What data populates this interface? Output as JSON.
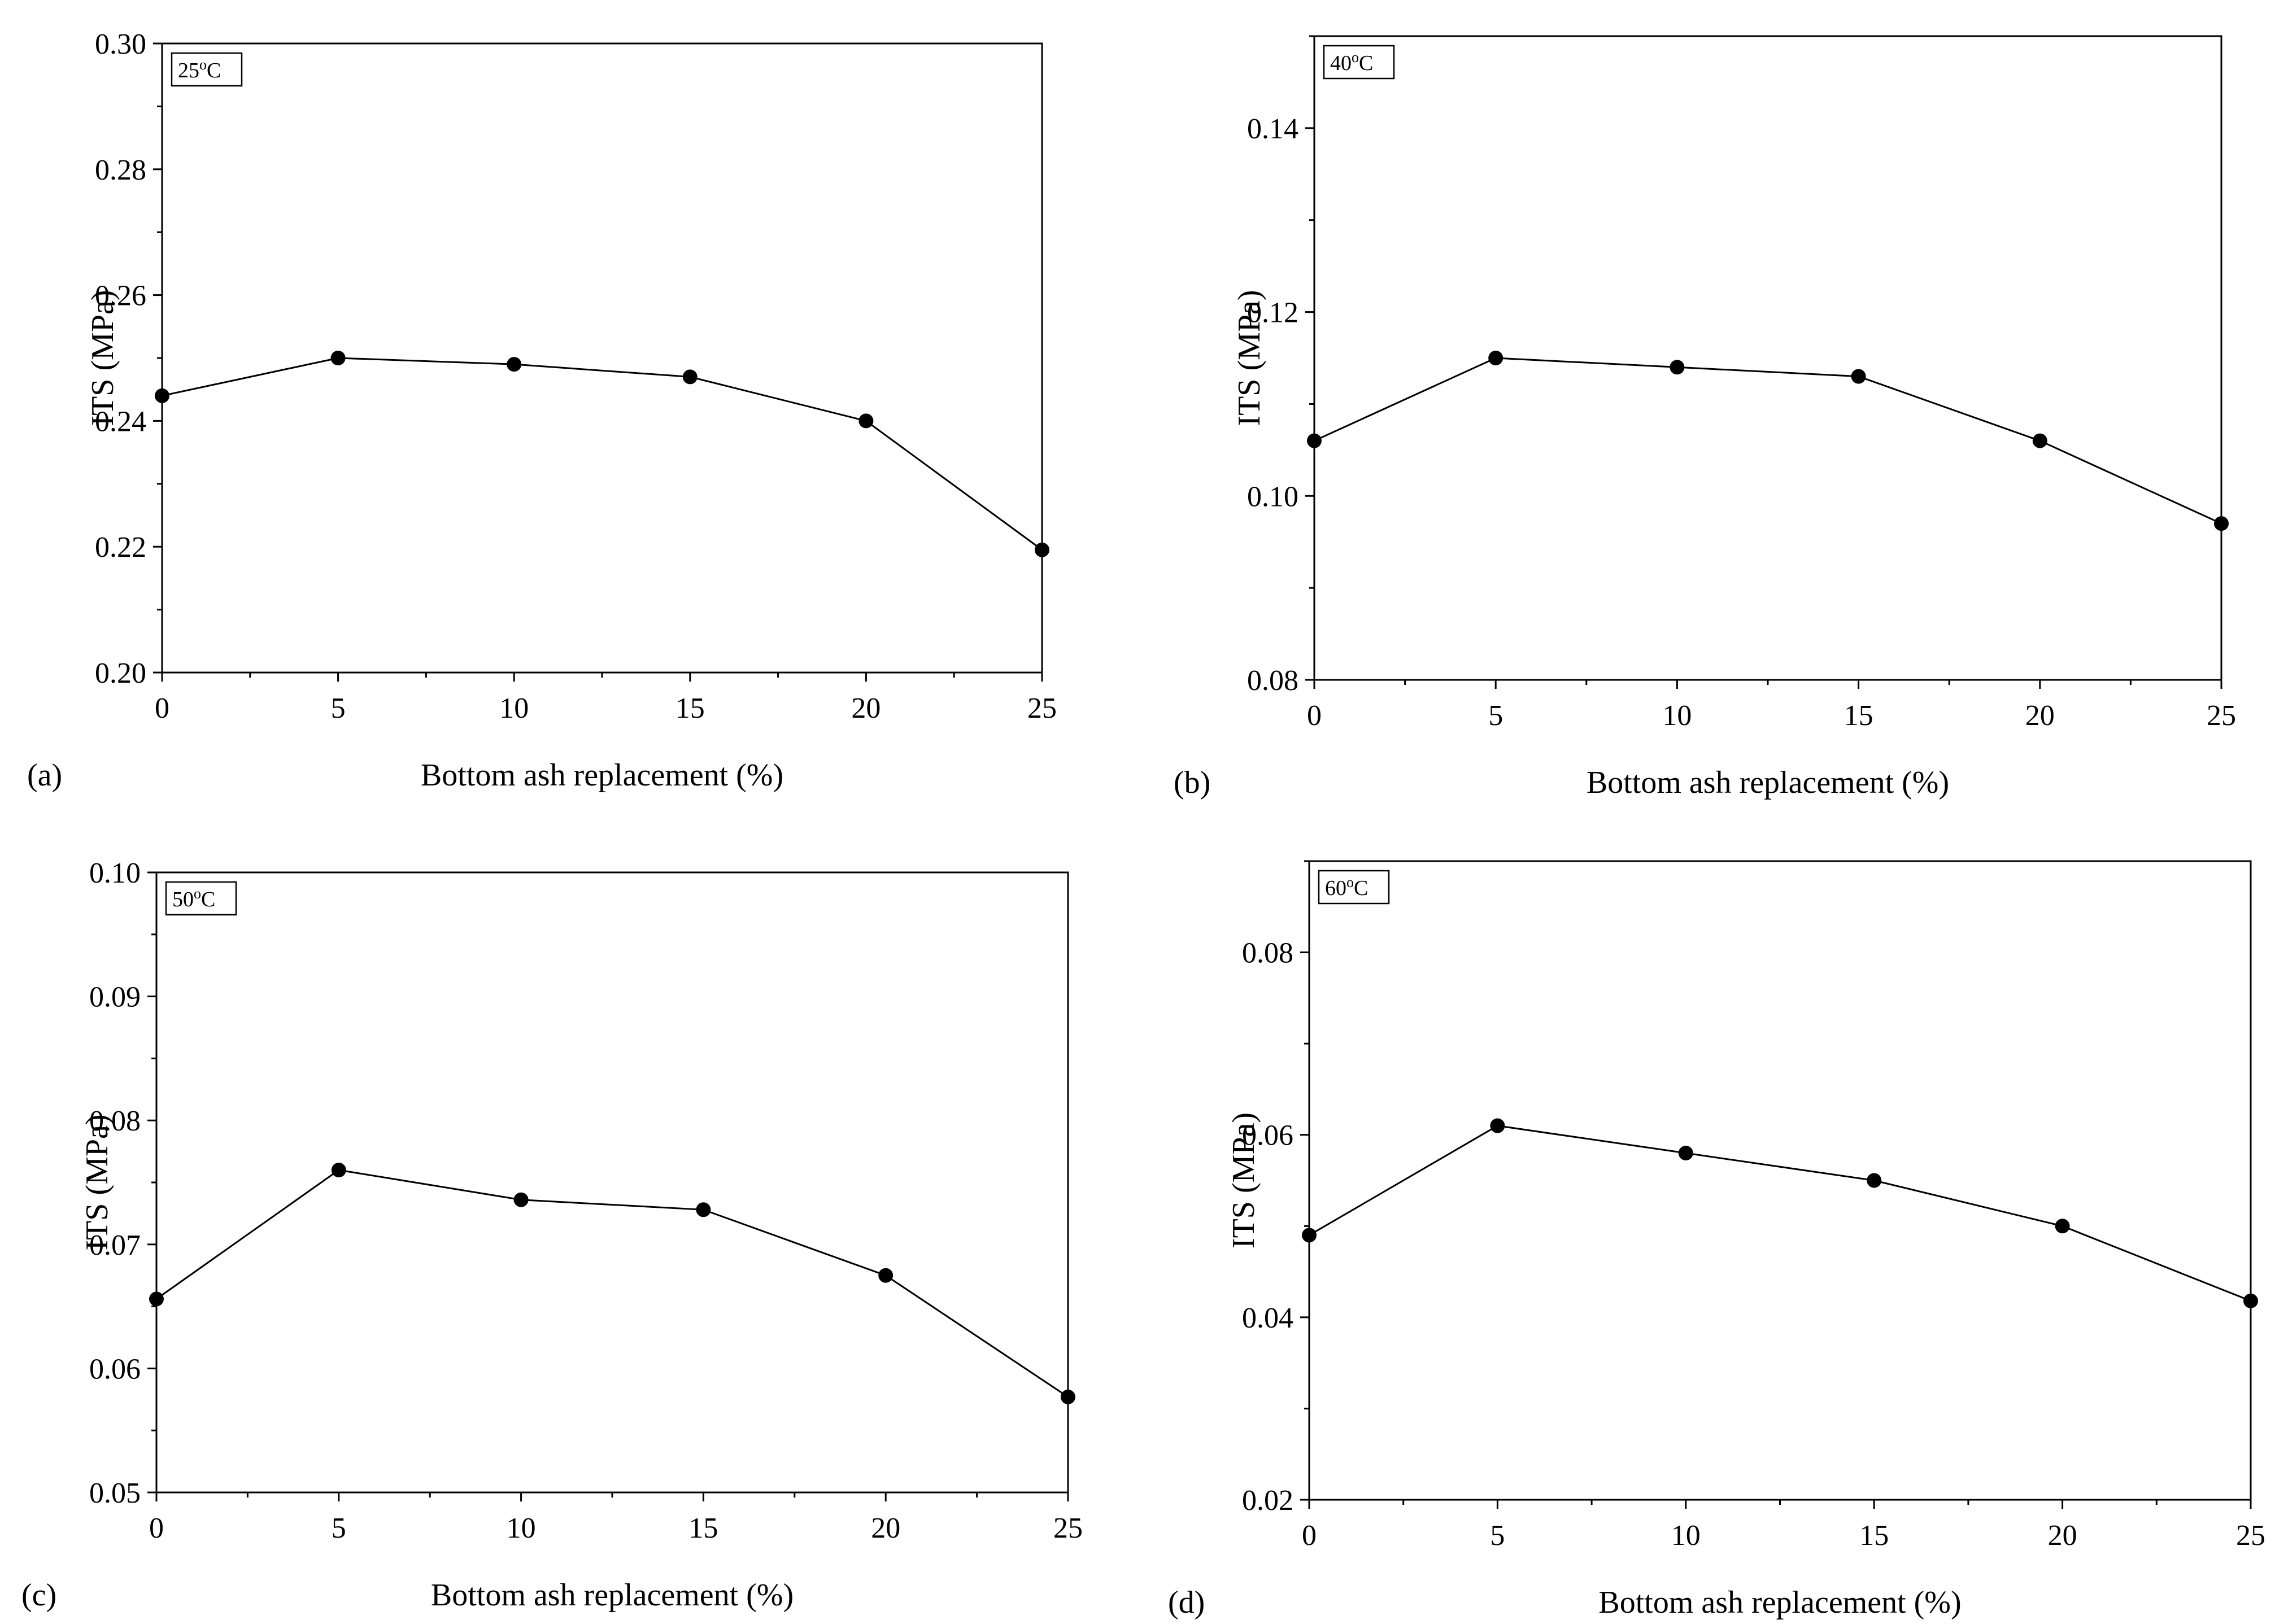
{
  "chart_data": [
    {
      "type": "line",
      "panel": "(a)",
      "temperature_label": "25",
      "temperature_sup": "o",
      "temperature_unit": "C",
      "xlabel": "Bottom ash replacement (%)",
      "ylabel": "ITS (MPa)",
      "x": [
        0,
        5,
        10,
        15,
        20,
        25
      ],
      "y": [
        0.244,
        0.25,
        0.249,
        0.247,
        0.24,
        0.2195
      ],
      "xlim": [
        0,
        25
      ],
      "ylim": [
        0.2,
        0.3
      ],
      "xticks": [
        0,
        5,
        10,
        15,
        20,
        25
      ],
      "xtick_labels": [
        "0",
        "5",
        "10",
        "15",
        "20",
        "25"
      ],
      "yticks": [
        0.2,
        0.22,
        0.24,
        0.26,
        0.28,
        0.3
      ],
      "ytick_labels": [
        "0.20",
        "0.22",
        "0.24",
        "0.26",
        "0.28",
        "0.30"
      ]
    },
    {
      "type": "line",
      "panel": "(b)",
      "temperature_label": "40",
      "temperature_sup": "o",
      "temperature_unit": "C",
      "xlabel": "Bottom ash replacement (%)",
      "ylabel": "ITS (MPa)",
      "x": [
        0,
        5,
        10,
        15,
        20,
        25
      ],
      "y": [
        0.106,
        0.115,
        0.114,
        0.113,
        0.106,
        0.097
      ],
      "xlim": [
        0,
        25
      ],
      "ylim": [
        0.08,
        0.15
      ],
      "xticks": [
        0,
        5,
        10,
        15,
        20,
        25
      ],
      "xtick_labels": [
        "0",
        "5",
        "10",
        "15",
        "20",
        "25"
      ],
      "yticks": [
        0.08,
        0.1,
        0.12,
        0.14
      ],
      "ytick_labels": [
        "0.08",
        "0.10",
        "0.12",
        "0.14"
      ]
    },
    {
      "type": "line",
      "panel": "(c)",
      "temperature_label": "50",
      "temperature_sup": "o",
      "temperature_unit": "C",
      "xlabel": "Bottom ash replacement (%)",
      "ylabel": "ITS (MPa)",
      "x": [
        0,
        5,
        10,
        15,
        20,
        25
      ],
      "y": [
        0.0656,
        0.076,
        0.0736,
        0.0728,
        0.0675,
        0.0577
      ],
      "xlim": [
        0,
        25
      ],
      "ylim": [
        0.05,
        0.1
      ],
      "xticks": [
        0,
        5,
        10,
        15,
        20,
        25
      ],
      "xtick_labels": [
        "0",
        "5",
        "10",
        "15",
        "20",
        "25"
      ],
      "yticks": [
        0.05,
        0.06,
        0.07,
        0.08,
        0.09,
        0.1
      ],
      "ytick_labels": [
        "0.05",
        "0.06",
        "0.07",
        "0.08",
        "0.09",
        "0.10"
      ]
    },
    {
      "type": "line",
      "panel": "(d)",
      "temperature_label": "60",
      "temperature_sup": "o",
      "temperature_unit": "C",
      "xlabel": "Bottom ash replacement (%)",
      "ylabel": "ITS (MPa)",
      "x": [
        0,
        5,
        10,
        15,
        20,
        25
      ],
      "y": [
        0.049,
        0.061,
        0.058,
        0.055,
        0.05,
        0.0418
      ],
      "xlim": [
        0,
        25
      ],
      "ylim": [
        0.02,
        0.09
      ],
      "xticks": [
        0,
        5,
        10,
        15,
        20,
        25
      ],
      "xtick_labels": [
        "0",
        "5",
        "10",
        "15",
        "20",
        "25"
      ],
      "yticks": [
        0.02,
        0.04,
        0.06,
        0.08
      ],
      "ytick_labels": [
        "0.02",
        "0.04",
        "0.06",
        "0.08"
      ]
    }
  ]
}
